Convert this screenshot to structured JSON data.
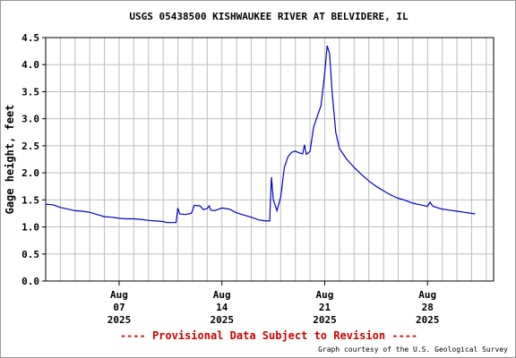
{
  "chart_data": {
    "type": "line",
    "title": "USGS 05438500 KISHWAUKEE RIVER AT BELVIDERE, IL",
    "ylabel": "Gage height, feet",
    "xlabel": "",
    "xlim": [
      "2025-08-02T00:00",
      "2025-09-01T12:00"
    ],
    "ylim": [
      0.0,
      4.5
    ],
    "yticks": [
      "0.0",
      "0.5",
      "1.0",
      "1.5",
      "2.0",
      "2.5",
      "3.0",
      "3.5",
      "4.0",
      "4.5"
    ],
    "xticks": [
      {
        "date": "2025-08-07T00:00",
        "label": [
          "Aug",
          "07",
          "2025"
        ]
      },
      {
        "date": "2025-08-14T00:00",
        "label": [
          "Aug",
          "14",
          "2025"
        ]
      },
      {
        "date": "2025-08-21T00:00",
        "label": [
          "Aug",
          "21",
          "2025"
        ]
      },
      {
        "date": "2025-08-28T00:00",
        "label": [
          "Aug",
          "28",
          "2025"
        ]
      }
    ],
    "grid": true,
    "series": [
      {
        "name": "",
        "color": "#0000c8",
        "points": [
          [
            "2025-08-02T00:00",
            1.42
          ],
          [
            "2025-08-02T12:00",
            1.41
          ],
          [
            "2025-08-03T00:00",
            1.36
          ],
          [
            "2025-08-03T12:00",
            1.33
          ],
          [
            "2025-08-04T00:00",
            1.3
          ],
          [
            "2025-08-04T12:00",
            1.29
          ],
          [
            "2025-08-05T00:00",
            1.27
          ],
          [
            "2025-08-05T12:00",
            1.23
          ],
          [
            "2025-08-06T00:00",
            1.19
          ],
          [
            "2025-08-06T12:00",
            1.18
          ],
          [
            "2025-08-07T00:00",
            1.16
          ],
          [
            "2025-08-07T12:00",
            1.15
          ],
          [
            "2025-08-08T00:00",
            1.15
          ],
          [
            "2025-08-08T12:00",
            1.14
          ],
          [
            "2025-08-09T00:00",
            1.12
          ],
          [
            "2025-08-09T12:00",
            1.11
          ],
          [
            "2025-08-10T00:00",
            1.1
          ],
          [
            "2025-08-10T06:00",
            1.08
          ],
          [
            "2025-08-10T12:00",
            1.08
          ],
          [
            "2025-08-10T21:00",
            1.08
          ],
          [
            "2025-08-11T00:00",
            1.35
          ],
          [
            "2025-08-11T03:00",
            1.24
          ],
          [
            "2025-08-11T12:00",
            1.23
          ],
          [
            "2025-08-11T22:00",
            1.25
          ],
          [
            "2025-08-12T03:00",
            1.4
          ],
          [
            "2025-08-12T12:00",
            1.39
          ],
          [
            "2025-08-12T18:00",
            1.32
          ],
          [
            "2025-08-13T00:00",
            1.34
          ],
          [
            "2025-08-13T03:00",
            1.39
          ],
          [
            "2025-08-13T06:00",
            1.31
          ],
          [
            "2025-08-13T12:00",
            1.3
          ],
          [
            "2025-08-14T00:00",
            1.35
          ],
          [
            "2025-08-14T12:00",
            1.33
          ],
          [
            "2025-08-15T00:00",
            1.26
          ],
          [
            "2025-08-15T12:00",
            1.22
          ],
          [
            "2025-08-16T00:00",
            1.18
          ],
          [
            "2025-08-16T12:00",
            1.13
          ],
          [
            "2025-08-17T00:00",
            1.11
          ],
          [
            "2025-08-17T06:00",
            1.11
          ],
          [
            "2025-08-17T09:00",
            1.92
          ],
          [
            "2025-08-17T12:00",
            1.5
          ],
          [
            "2025-08-17T18:00",
            1.3
          ],
          [
            "2025-08-18T00:00",
            1.55
          ],
          [
            "2025-08-18T06:00",
            2.1
          ],
          [
            "2025-08-18T12:00",
            2.3
          ],
          [
            "2025-08-18T18:00",
            2.38
          ],
          [
            "2025-08-19T00:00",
            2.4
          ],
          [
            "2025-08-19T06:00",
            2.37
          ],
          [
            "2025-08-19T12:00",
            2.35
          ],
          [
            "2025-08-19T15:00",
            2.52
          ],
          [
            "2025-08-19T18:00",
            2.34
          ],
          [
            "2025-08-20T00:00",
            2.4
          ],
          [
            "2025-08-20T06:00",
            2.85
          ],
          [
            "2025-08-20T12:00",
            3.05
          ],
          [
            "2025-08-20T18:00",
            3.25
          ],
          [
            "2025-08-21T00:00",
            3.85
          ],
          [
            "2025-08-21T04:00",
            4.35
          ],
          [
            "2025-08-21T08:00",
            4.2
          ],
          [
            "2025-08-21T12:00",
            3.5
          ],
          [
            "2025-08-21T18:00",
            2.75
          ],
          [
            "2025-08-22T00:00",
            2.45
          ],
          [
            "2025-08-22T12:00",
            2.25
          ],
          [
            "2025-08-23T00:00",
            2.1
          ],
          [
            "2025-08-23T12:00",
            1.97
          ],
          [
            "2025-08-24T00:00",
            1.85
          ],
          [
            "2025-08-24T12:00",
            1.75
          ],
          [
            "2025-08-25T00:00",
            1.67
          ],
          [
            "2025-08-25T12:00",
            1.59
          ],
          [
            "2025-08-26T00:00",
            1.53
          ],
          [
            "2025-08-26T12:00",
            1.49
          ],
          [
            "2025-08-27T00:00",
            1.44
          ],
          [
            "2025-08-27T12:00",
            1.41
          ],
          [
            "2025-08-28T00:00",
            1.38
          ],
          [
            "2025-08-28T04:00",
            1.46
          ],
          [
            "2025-08-28T08:00",
            1.39
          ],
          [
            "2025-08-28T12:00",
            1.37
          ],
          [
            "2025-08-29T00:00",
            1.33
          ],
          [
            "2025-08-29T12:00",
            1.31
          ],
          [
            "2025-08-30T00:00",
            1.29
          ],
          [
            "2025-08-30T12:00",
            1.27
          ],
          [
            "2025-08-31T00:00",
            1.25
          ],
          [
            "2025-08-31T06:00",
            1.24
          ]
        ]
      }
    ]
  },
  "footer": {
    "provisional": "---- Provisional Data Subject to Revision ----",
    "credit": "Graph courtesy of the U.S. Geological Survey"
  },
  "colors": {
    "line": "#0000c8",
    "grid": "#bdbdbd",
    "provisional": "#d00000"
  }
}
